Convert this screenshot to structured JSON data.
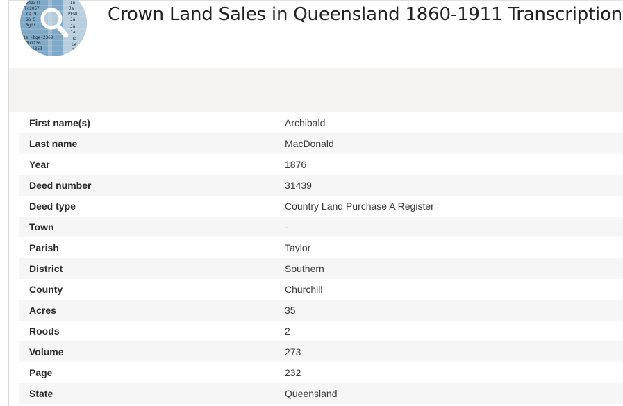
{
  "header": {
    "title": "Crown Land Sales in Queensland 1860-1911 Transcription",
    "logo_icon": "magnifier-over-records-icon"
  },
  "record": {
    "rows": [
      {
        "label": "First name(s)",
        "value": "Archibald"
      },
      {
        "label": "Last name",
        "value": "MacDonald"
      },
      {
        "label": "Year",
        "value": "1876"
      },
      {
        "label": "Deed number",
        "value": "31439"
      },
      {
        "label": "Deed type",
        "value": "Country Land Purchase A Register"
      },
      {
        "label": "Town",
        "value": "-"
      },
      {
        "label": "Parish",
        "value": "Taylor"
      },
      {
        "label": "District",
        "value": "Southern"
      },
      {
        "label": "County",
        "value": "Churchill"
      },
      {
        "label": "Acres",
        "value": "35"
      },
      {
        "label": "Roods",
        "value": "2"
      },
      {
        "label": "Volume",
        "value": "273"
      },
      {
        "label": "Page",
        "value": "232"
      },
      {
        "label": "State",
        "value": "Queensland"
      }
    ]
  },
  "colors": {
    "band": "#f5f4f2",
    "row_alt": "#f6f6f6",
    "logo_blue": "#7fa9c6"
  }
}
